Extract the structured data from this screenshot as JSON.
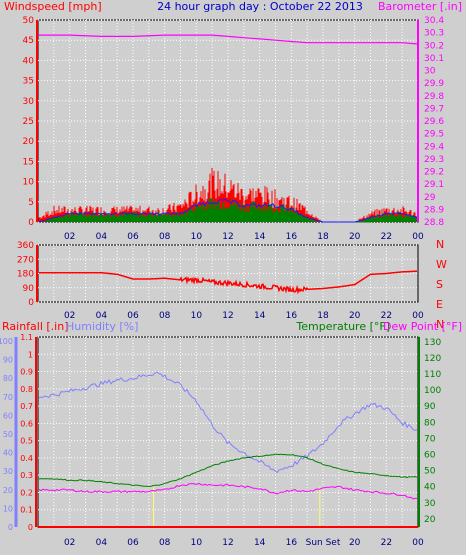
{
  "header": {
    "title": "24 hour graph day : October 22 2013",
    "left_label": "Windspeed [mph]",
    "right_label": "Barometer [.in]"
  },
  "colors": {
    "background": "#cfcfcf",
    "wind_red": "#ff0000",
    "wind_blue": "#1a1aff",
    "wind_green": "#008000",
    "barometer": "#ff00ff",
    "title_blue": "#0000c8",
    "humidity": "#8080ff",
    "temperature": "#008000",
    "dew_point": "#ff00ff",
    "grid": "#ffffff",
    "tick_labels": "#000080"
  },
  "chart_data": [
    {
      "type": "line",
      "panel": "wind-and-barometer",
      "xlabel": "",
      "x_ticks": [
        "02",
        "04",
        "06",
        "08",
        "10",
        "12",
        "14",
        "16",
        "18",
        "20",
        "22",
        "00"
      ],
      "xlim": [
        0,
        24
      ],
      "y_left_ticks": [
        "0",
        "5",
        "10",
        "15",
        "20",
        "25",
        "30",
        "35",
        "40",
        "45",
        "50"
      ],
      "ylim_left": [
        0,
        50
      ],
      "y_right_ticks": [
        "28.8",
        "28.9",
        "29",
        "29.1",
        "29.2",
        "29.3",
        "29.4",
        "29.5",
        "29.6",
        "29.7",
        "29.8",
        "29.9",
        "30",
        "30.1",
        "30.2",
        "30.3",
        "30.4"
      ],
      "ylim_right": [
        28.8,
        30.4
      ],
      "series": [
        {
          "name": "Barometer",
          "axis": "right",
          "x": [
            0,
            2,
            4,
            6,
            8,
            10,
            11,
            12,
            13,
            14,
            15,
            16,
            17,
            18,
            19,
            20,
            21,
            22,
            23,
            24
          ],
          "values": [
            30.28,
            30.28,
            30.27,
            30.27,
            30.28,
            30.28,
            30.28,
            30.27,
            30.26,
            30.25,
            30.24,
            30.23,
            30.22,
            30.22,
            30.22,
            30.22,
            30.22,
            30.22,
            30.22,
            30.21
          ]
        },
        {
          "name": "Wind gust",
          "axis": "left",
          "x": [
            0,
            1,
            2,
            3,
            4,
            5,
            6,
            7,
            8,
            9,
            10,
            11,
            12,
            13,
            14,
            15,
            16,
            17,
            18,
            19,
            20,
            21,
            22,
            23,
            24
          ],
          "values": [
            1,
            3,
            3,
            3,
            3,
            3,
            3,
            3,
            3,
            4,
            7,
            10,
            9,
            7,
            7,
            6,
            5,
            3,
            0,
            0,
            0,
            2,
            3,
            3,
            2
          ]
        },
        {
          "name": "Wind average",
          "axis": "left",
          "x": [
            0,
            1,
            2,
            3,
            4,
            5,
            6,
            7,
            8,
            9,
            10,
            11,
            12,
            13,
            14,
            15,
            16,
            17,
            18,
            19,
            20,
            21,
            22,
            23,
            24
          ],
          "values": [
            0,
            1,
            2,
            2,
            2,
            2,
            2,
            2,
            2,
            2,
            4,
            5,
            5,
            4,
            4,
            4,
            3,
            1,
            0,
            0,
            0,
            1,
            2,
            2,
            1
          ]
        },
        {
          "name": "Wind min",
          "axis": "left",
          "x": [
            0,
            1,
            2,
            3,
            4,
            5,
            6,
            7,
            8,
            9,
            10,
            11,
            12,
            13,
            14,
            15,
            16,
            17,
            18,
            19,
            20,
            21,
            22,
            23,
            24
          ],
          "values": [
            0,
            1,
            1,
            1,
            1,
            1,
            1,
            1,
            1,
            1,
            2,
            3,
            3,
            2,
            2,
            2,
            2,
            1,
            0,
            0,
            0,
            0,
            1,
            1,
            1
          ]
        }
      ]
    },
    {
      "type": "line",
      "panel": "wind-direction",
      "x_ticks": [
        "02",
        "04",
        "06",
        "08",
        "10",
        "12",
        "14",
        "16",
        "18",
        "20",
        "22",
        "00"
      ],
      "xlim": [
        0,
        24
      ],
      "y_left_ticks": [
        "0",
        "90",
        "180",
        "270",
        "360"
      ],
      "ylim_left": [
        0,
        360
      ],
      "y_right_ticks": [
        "N",
        "W",
        "S",
        "E",
        "N"
      ],
      "series": [
        {
          "name": "Wind direction",
          "x": [
            0,
            2,
            4,
            5,
            6,
            7,
            8,
            9,
            10,
            11,
            12,
            13,
            14,
            15,
            16,
            17,
            18,
            19,
            20,
            21,
            22,
            23,
            24
          ],
          "values": [
            185,
            185,
            185,
            175,
            145,
            145,
            150,
            140,
            140,
            125,
            120,
            110,
            100,
            90,
            78,
            80,
            85,
            95,
            110,
            175,
            180,
            190,
            195
          ]
        }
      ]
    },
    {
      "type": "line",
      "panel": "rain-humidity-temperature",
      "x_ticks": [
        "02",
        "04",
        "06",
        "08",
        "10",
        "12",
        "14",
        "16",
        "Sun Set",
        "20",
        "22",
        "00"
      ],
      "xlim": [
        0,
        24
      ],
      "left_labels": [
        "Rainfall [.in]",
        "Humidity [%]"
      ],
      "right_labels": [
        "Temperature [°F]",
        "Dew Point [°F]"
      ],
      "y_rain_ticks": [
        "0",
        "0.1",
        "0.2",
        "0.3",
        "0.4",
        "0.5",
        "0.6",
        "0.7",
        "0.8",
        "0.9",
        "1",
        "1.1"
      ],
      "ylim_rain": [
        0,
        1.1
      ],
      "y_humidity_ticks": [
        "0",
        "10",
        "20",
        "30",
        "40",
        "50",
        "60",
        "70",
        "80",
        "90",
        "100"
      ],
      "ylim_humidity": [
        0,
        100
      ],
      "y_temp_ticks": [
        "20",
        "30",
        "40",
        "50",
        "60",
        "70",
        "80",
        "90",
        "100",
        "110",
        "120",
        "130"
      ],
      "ylim_temp": [
        15,
        133
      ],
      "sun_markers": [
        7.3,
        17.8
      ],
      "series": [
        {
          "name": "Rainfall",
          "axis": "rain",
          "x": [
            0,
            24
          ],
          "values": [
            0,
            0
          ]
        },
        {
          "name": "Humidity",
          "axis": "humidity",
          "x": [
            0,
            1,
            2,
            3,
            4,
            5,
            6,
            7,
            7.5,
            8,
            9,
            10,
            11,
            12,
            13,
            14,
            15,
            16,
            17,
            18,
            19,
            20,
            21,
            22,
            23,
            24
          ],
          "values": [
            70,
            71,
            73,
            75,
            77,
            79,
            80,
            82,
            83,
            81,
            76,
            68,
            55,
            45,
            40,
            35,
            30,
            33,
            38,
            45,
            55,
            61,
            66,
            64,
            56,
            52
          ]
        },
        {
          "name": "Temperature",
          "axis": "temp",
          "x": [
            0,
            1,
            2,
            3,
            4,
            5,
            6,
            7,
            8,
            9,
            10,
            11,
            12,
            13,
            14,
            15,
            16,
            17,
            18,
            19,
            20,
            21,
            22,
            23,
            24
          ],
          "values": [
            45,
            45,
            44,
            44,
            43,
            42,
            41,
            40,
            42,
            45,
            49,
            53,
            56,
            58,
            59,
            60,
            60,
            58,
            54,
            51,
            49,
            48,
            47,
            46,
            46
          ]
        },
        {
          "name": "Dew Point",
          "axis": "temp",
          "x": [
            0,
            1,
            2,
            3,
            4,
            5,
            6,
            7,
            8,
            9,
            10,
            11,
            12,
            13,
            14,
            15,
            16,
            17,
            18,
            19,
            20,
            21,
            22,
            23,
            24
          ],
          "values": [
            38,
            38,
            38,
            37,
            37,
            37,
            37,
            37,
            38,
            41,
            42,
            41,
            41,
            40,
            39,
            36,
            38,
            37,
            39,
            40,
            38,
            37,
            36,
            35,
            32
          ]
        }
      ]
    }
  ]
}
